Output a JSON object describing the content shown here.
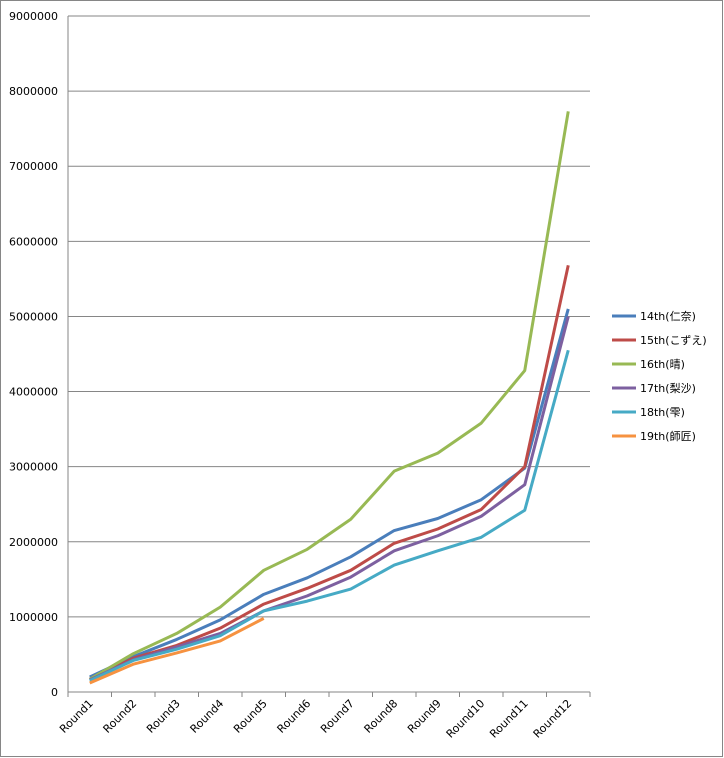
{
  "chart_data": {
    "type": "line",
    "categories": [
      "Round1",
      "Round2",
      "Round3",
      "Round4",
      "Round5",
      "Round6",
      "Round7",
      "Round8",
      "Round9",
      "Round10",
      "Round11",
      "Round12"
    ],
    "series": [
      {
        "name": "14th(仁奈)",
        "color": "#4a7ebb",
        "values": [
          200000,
          470000,
          700000,
          960000,
          1300000,
          1520000,
          1800000,
          2150000,
          2310000,
          2560000,
          2980000,
          5100000
        ]
      },
      {
        "name": "15th(こずえ)",
        "color": "#be4b48",
        "values": [
          170000,
          450000,
          620000,
          850000,
          1170000,
          1380000,
          1620000,
          1980000,
          2170000,
          2430000,
          3000000,
          5680000
        ]
      },
      {
        "name": "16th(晴)",
        "color": "#98b954",
        "values": [
          170000,
          510000,
          780000,
          1130000,
          1620000,
          1900000,
          2300000,
          2940000,
          3180000,
          3580000,
          4280000,
          7730000
        ]
      },
      {
        "name": "17th(梨沙)",
        "color": "#7d60a0",
        "values": [
          160000,
          430000,
          600000,
          780000,
          1080000,
          1280000,
          1530000,
          1880000,
          2080000,
          2340000,
          2760000,
          5000000
        ]
      },
      {
        "name": "18th(雫)",
        "color": "#46aac5",
        "values": [
          150000,
          420000,
          570000,
          750000,
          1080000,
          1210000,
          1370000,
          1690000,
          1880000,
          2060000,
          2420000,
          4550000
        ]
      },
      {
        "name": "19th(師匠)",
        "color": "#f69240",
        "values": [
          120000,
          370000,
          520000,
          680000,
          980000,
          null,
          null,
          null,
          null,
          null,
          null,
          null
        ]
      }
    ],
    "ylim": [
      0,
      9000000
    ],
    "yticks": [
      0,
      1000000,
      2000000,
      3000000,
      4000000,
      5000000,
      6000000,
      7000000,
      8000000,
      9000000
    ],
    "grid": true,
    "legend": "right"
  }
}
